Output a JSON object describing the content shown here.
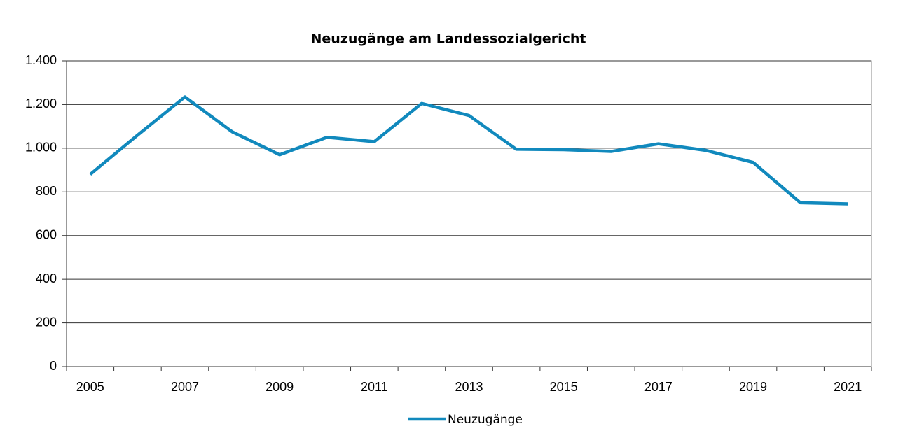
{
  "chart_data": {
    "type": "line",
    "title": "Neuzugänge am Landessozialgericht",
    "categories": [
      "2005",
      null,
      "2007",
      null,
      "2009",
      null,
      "2011",
      null,
      "2013",
      null,
      "2015",
      null,
      "2017",
      null,
      "2019",
      null,
      "2021"
    ],
    "series": [
      {
        "name": "Neuzugänge",
        "color": "#1189bd",
        "values": [
          880,
          1060,
          1235,
          1075,
          970,
          1050,
          1030,
          1205,
          1150,
          995,
          993,
          985,
          1020,
          990,
          935,
          750,
          745
        ]
      }
    ],
    "ylim": [
      0,
      1400
    ],
    "yticks": [
      0,
      200,
      400,
      600,
      800,
      {
        "value": 1000,
        "label": "1.000"
      },
      {
        "value": 1200,
        "label": "1.200"
      },
      {
        "value": 1400,
        "label": "1.400"
      }
    ],
    "grid": true,
    "legend": "bottom"
  }
}
